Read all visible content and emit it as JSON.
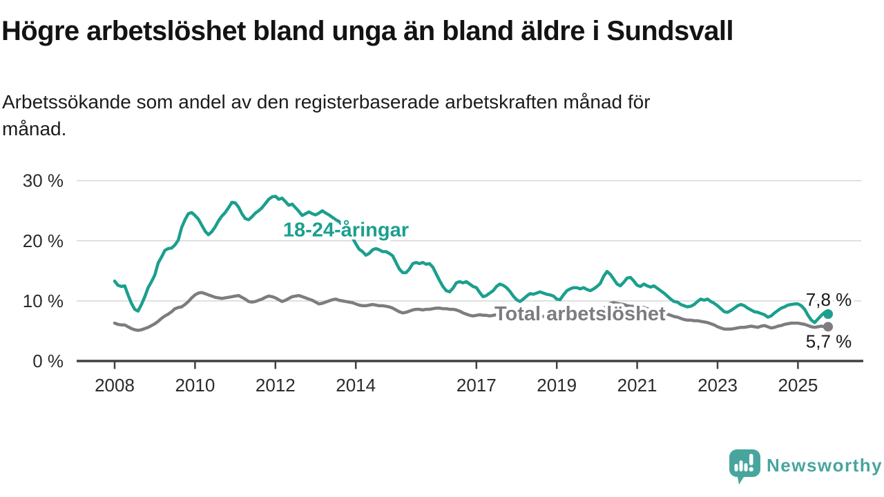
{
  "header": {
    "title": "Högre arbetslöshet bland unga än bland äldre i Sundsvall",
    "subtitle_lines": [
      "Arbetssökande som andel av den registerbaserade arbetskraften månad för",
      "månad."
    ]
  },
  "colors": {
    "accent_teal": "#1b9f8e",
    "series_gray": "#7d7c81",
    "grid": "#d9d9d9",
    "axis": "#404040",
    "tick_text": "#2b2b2b",
    "value_text": "#191919",
    "logo_teal": "#48a59e"
  },
  "chart_data": {
    "type": "line",
    "x_start": 2008.0,
    "frequency": "monthly",
    "x_end": 2025.75,
    "ylim": [
      0,
      30
    ],
    "grid": true,
    "legend_position": "inline-labels",
    "y_ticks": [
      {
        "value": 30,
        "label": "30 %"
      },
      {
        "value": 20,
        "label": "20 %"
      },
      {
        "value": 10,
        "label": "10 %"
      },
      {
        "value": 0,
        "label": "0 %"
      }
    ],
    "x_ticks": [
      {
        "year": 2008,
        "label": "2008"
      },
      {
        "year": 2010,
        "label": "2010"
      },
      {
        "year": 2012,
        "label": "2012"
      },
      {
        "year": 2014,
        "label": "2014"
      },
      {
        "year": 2017,
        "label": "2017"
      },
      {
        "year": 2019,
        "label": "2019"
      },
      {
        "year": 2021,
        "label": "2021"
      },
      {
        "year": 2023,
        "label": "2023"
      },
      {
        "year": 2025,
        "label": "2025"
      }
    ],
    "series": [
      {
        "name": "18-24-åringar",
        "color": "#1b9f8e",
        "end_label": "7,8 %",
        "end_label_position": "above",
        "label_pos": {
          "year": 2012.19,
          "value": 20.7
        },
        "values": [
          13.3,
          12.6,
          12.4,
          12.5,
          11.0,
          9.6,
          8.6,
          8.3,
          9.4,
          10.7,
          12.2,
          13.2,
          14.3,
          16.3,
          17.3,
          18.4,
          18.7,
          18.8,
          19.3,
          20.1,
          22.2,
          23.5,
          24.5,
          24.7,
          24.2,
          23.6,
          22.6,
          21.6,
          21.0,
          21.5,
          22.3,
          23.3,
          24.1,
          24.7,
          25.5,
          26.4,
          26.3,
          25.6,
          24.5,
          23.7,
          23.5,
          24.0,
          24.6,
          25.0,
          25.5,
          26.2,
          26.9,
          27.3,
          27.4,
          26.9,
          27.1,
          26.5,
          25.9,
          26.1,
          25.5,
          24.9,
          24.2,
          24.5,
          24.8,
          24.5,
          24.3,
          24.6,
          25.0,
          24.6,
          24.3,
          23.9,
          23.5,
          23.2,
          22.6,
          22.0,
          21.3,
          20.5,
          19.5,
          18.6,
          18.2,
          17.6,
          17.9,
          18.5,
          18.7,
          18.5,
          18.2,
          18.2,
          17.9,
          17.5,
          16.4,
          15.3,
          14.7,
          14.7,
          15.3,
          16.2,
          16.4,
          16.2,
          16.4,
          16.1,
          16.2,
          15.6,
          14.5,
          13.4,
          12.4,
          11.7,
          11.5,
          12.1,
          13.0,
          13.2,
          13.0,
          13.2,
          12.8,
          12.4,
          12.2,
          11.4,
          10.7,
          10.9,
          11.3,
          11.7,
          12.4,
          12.8,
          12.6,
          12.2,
          11.6,
          10.8,
          10.2,
          9.9,
          10.3,
          10.8,
          11.2,
          11.1,
          11.3,
          11.5,
          11.3,
          11.1,
          11.0,
          10.8,
          10.3,
          10.2,
          11.0,
          11.7,
          12.0,
          12.2,
          12.2,
          12.0,
          12.2,
          11.9,
          11.7,
          12.0,
          12.4,
          12.9,
          14.1,
          14.9,
          14.4,
          13.6,
          12.8,
          12.5,
          13.1,
          13.8,
          13.9,
          13.3,
          12.6,
          12.4,
          12.8,
          12.5,
          12.3,
          12.5,
          12.1,
          11.7,
          11.3,
          10.8,
          10.3,
          9.9,
          9.8,
          9.4,
          9.2,
          9.0,
          9.1,
          9.4,
          9.9,
          10.3,
          10.1,
          10.3,
          9.9,
          9.6,
          9.2,
          8.7,
          8.2,
          8.1,
          8.4,
          8.8,
          9.2,
          9.4,
          9.2,
          8.8,
          8.5,
          8.2,
          8.1,
          7.9,
          7.7,
          7.3,
          7.5,
          8.0,
          8.4,
          8.8,
          9.0,
          9.3,
          9.4,
          9.5,
          9.5,
          9.2,
          8.6,
          7.6,
          6.8,
          6.4,
          7.0,
          7.6,
          8.1,
          7.8
        ]
      },
      {
        "name": "Total arbetslöshet",
        "color": "#7d7c81",
        "end_label": "5,7 %",
        "end_label_position": "below",
        "label_pos": {
          "year": 2017.45,
          "value": 6.8
        },
        "values": [
          6.3,
          6.1,
          6.0,
          6.0,
          5.7,
          5.4,
          5.2,
          5.1,
          5.2,
          5.4,
          5.6,
          5.9,
          6.2,
          6.6,
          7.1,
          7.5,
          7.8,
          8.2,
          8.7,
          8.9,
          9.0,
          9.4,
          9.9,
          10.5,
          11.0,
          11.3,
          11.4,
          11.2,
          11.0,
          10.8,
          10.6,
          10.5,
          10.4,
          10.5,
          10.6,
          10.7,
          10.8,
          10.9,
          10.6,
          10.3,
          9.9,
          9.8,
          9.9,
          10.1,
          10.3,
          10.6,
          10.8,
          10.7,
          10.5,
          10.2,
          9.9,
          10.1,
          10.4,
          10.7,
          10.8,
          10.9,
          10.7,
          10.5,
          10.3,
          10.1,
          9.8,
          9.5,
          9.6,
          9.8,
          10.0,
          10.2,
          10.3,
          10.1,
          10.0,
          9.9,
          9.8,
          9.7,
          9.5,
          9.3,
          9.2,
          9.2,
          9.3,
          9.4,
          9.3,
          9.2,
          9.2,
          9.1,
          9.0,
          8.8,
          8.5,
          8.2,
          8.0,
          8.1,
          8.3,
          8.5,
          8.6,
          8.6,
          8.5,
          8.6,
          8.6,
          8.7,
          8.8,
          8.8,
          8.7,
          8.7,
          8.6,
          8.6,
          8.5,
          8.3,
          8.0,
          7.8,
          7.6,
          7.5,
          7.6,
          7.7,
          7.6,
          7.6,
          7.5,
          7.6,
          7.7,
          7.8,
          7.8,
          7.7,
          7.6,
          7.5,
          7.4,
          7.3,
          7.3,
          7.4,
          7.5,
          7.6,
          7.6,
          7.5,
          7.4,
          7.3,
          7.3,
          7.3,
          7.4,
          7.4,
          7.5,
          7.6,
          7.6,
          7.7,
          7.8,
          7.8,
          7.7,
          7.7,
          7.7,
          7.8,
          7.9,
          8.0,
          8.6,
          9.3,
          9.6,
          9.7,
          9.6,
          9.5,
          9.4,
          9.2,
          9.1,
          9.1,
          9.1,
          9.0,
          8.9,
          8.7,
          8.5,
          8.4,
          8.2,
          8.1,
          7.9,
          7.8,
          7.6,
          7.4,
          7.3,
          7.1,
          6.9,
          6.8,
          6.8,
          6.7,
          6.7,
          6.6,
          6.5,
          6.4,
          6.2,
          6.0,
          5.7,
          5.5,
          5.3,
          5.3,
          5.3,
          5.4,
          5.5,
          5.6,
          5.6,
          5.7,
          5.8,
          5.7,
          5.6,
          5.8,
          5.9,
          5.7,
          5.5,
          5.6,
          5.8,
          5.9,
          6.1,
          6.2,
          6.3,
          6.3,
          6.3,
          6.2,
          6.1,
          5.9,
          5.7,
          5.6,
          5.7,
          5.8,
          5.7,
          5.7
        ]
      }
    ]
  },
  "branding": {
    "logo_text": "Newsworthy"
  }
}
